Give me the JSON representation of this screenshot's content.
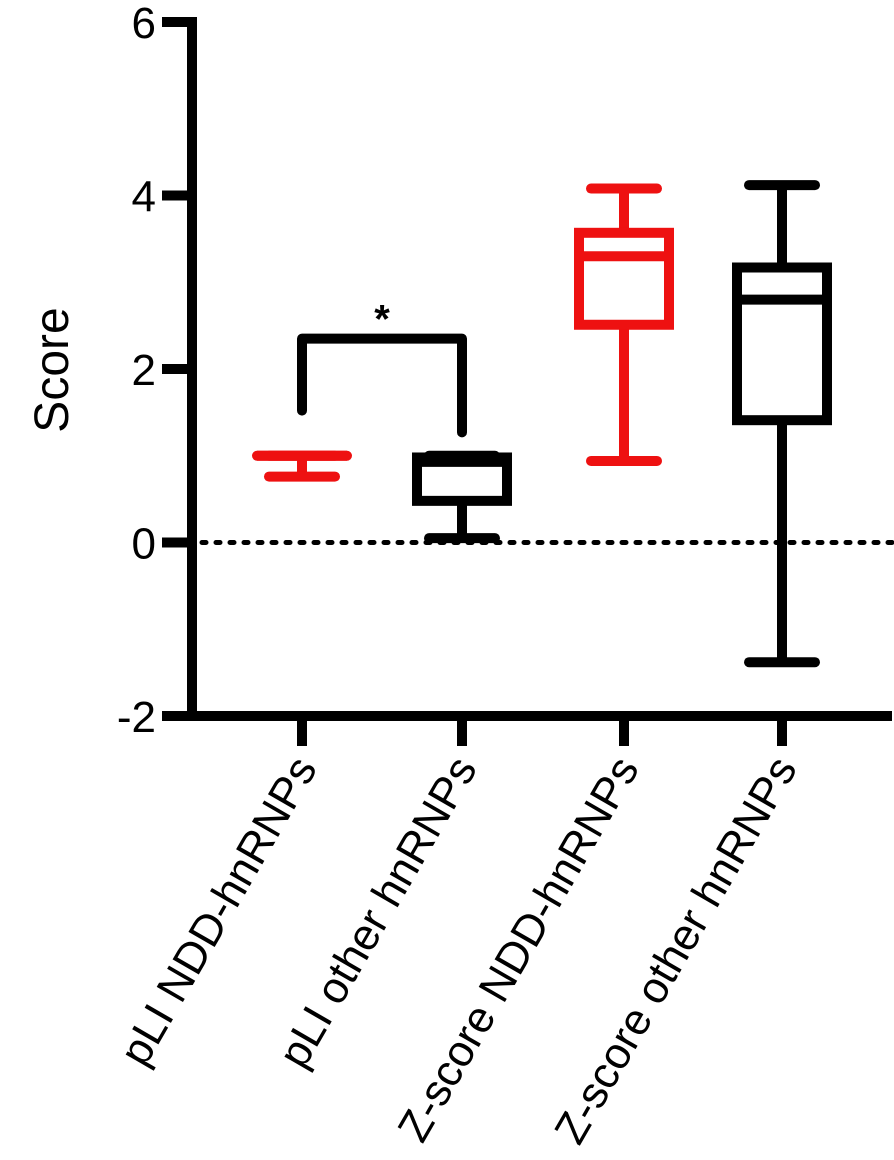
{
  "chart_data": {
    "type": "box",
    "title": "",
    "xlabel": "",
    "ylabel": "Score",
    "ylim": [
      -2,
      6
    ],
    "yticks": [
      "-2",
      "0",
      "2",
      "4",
      "6"
    ],
    "yticks_values": [
      -2,
      0,
      2,
      4,
      6
    ],
    "reference_line": {
      "y": 0,
      "style": "dotted"
    },
    "categories": [
      "pLI NDD-hnRNPs",
      "pLI other hnRNPs",
      "Z-score NDD-hnRNPs",
      "Z-score other hnRNPs"
    ],
    "boxes": [
      {
        "category": "pLI NDD-hnRNPs",
        "min": 0.76,
        "q1": 0.98,
        "median": 1.0,
        "q3": 1.0,
        "max": 1.0,
        "color": "#ee1111"
      },
      {
        "category": "pLI other hnRNPs",
        "min": 0.05,
        "q1": 0.48,
        "median": 0.93,
        "q3": 0.98,
        "max": 1.0,
        "color": "#000000"
      },
      {
        "category": "Z-score NDD-hnRNPs",
        "min": 0.94,
        "q1": 2.51,
        "median": 3.3,
        "q3": 3.57,
        "max": 4.08,
        "color": "#ee1111"
      },
      {
        "category": "Z-score other hnRNPs",
        "min": -1.38,
        "q1": 1.41,
        "median": 2.8,
        "q3": 3.17,
        "max": 4.12,
        "color": "#000000"
      }
    ],
    "significance": {
      "label": "*",
      "from": "pLI NDD-hnRNPs",
      "to": "pLI other hnRNPs",
      "y": 2.35,
      "left_end": 1.52,
      "right_end": 1.27
    },
    "grid": false,
    "legend": "none"
  }
}
